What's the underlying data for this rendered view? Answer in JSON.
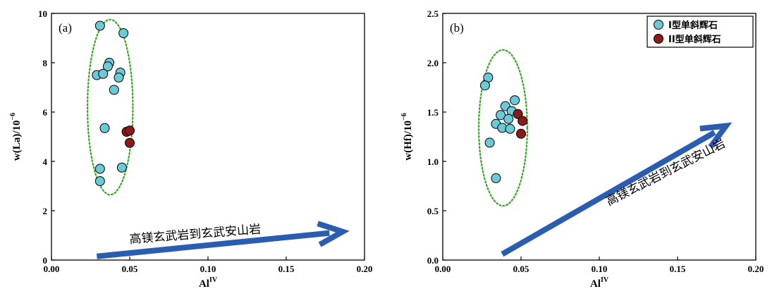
{
  "chart_data": [
    {
      "type": "scatter",
      "panel_label": "(a)",
      "xlabel": "Al",
      "xlabel_sup": "IV",
      "ylabel": "w(La)/10",
      "ylabel_sup": "−6",
      "xlim": [
        0,
        0.2
      ],
      "ylim": [
        0,
        10
      ],
      "xticks": [
        "0.00",
        "0.05",
        "0.10",
        "0.15",
        "0.20"
      ],
      "yticks": [
        "0",
        "2",
        "4",
        "6",
        "8",
        "10"
      ],
      "legend": null,
      "series": [
        {
          "name": "I型单斜辉石",
          "color": "#6cc9d6",
          "points": [
            [
              0.031,
              9.5
            ],
            [
              0.046,
              9.2
            ],
            [
              0.037,
              8.0
            ],
            [
              0.036,
              7.85
            ],
            [
              0.029,
              7.5
            ],
            [
              0.033,
              7.55
            ],
            [
              0.044,
              7.6
            ],
            [
              0.043,
              7.4
            ],
            [
              0.04,
              6.9
            ],
            [
              0.034,
              5.35
            ],
            [
              0.031,
              3.7
            ],
            [
              0.045,
              3.75
            ],
            [
              0.031,
              3.2
            ]
          ]
        },
        {
          "name": "II型单斜辉石",
          "color": "#8b1a1a",
          "points": [
            [
              0.048,
              5.2
            ],
            [
              0.05,
              5.25
            ],
            [
              0.05,
              4.75
            ]
          ]
        }
      ],
      "ellipse": {
        "cx": 0.0375,
        "cy": 6.2,
        "rx": 0.0145,
        "ry": 3.55,
        "color": "#33aa22"
      },
      "arrow": {
        "from": [
          0.029,
          0.15
        ],
        "to": [
          0.186,
          1.15
        ],
        "color": "#2a5db0"
      },
      "annotation": {
        "text": "高镁玄武岩到玄武安山岩",
        "x": 0.05,
        "y": 0.68,
        "rotate": -4.5
      }
    },
    {
      "type": "scatter",
      "panel_label": "(b)",
      "xlabel": "Al",
      "xlabel_sup": "IV",
      "ylabel": "w(Hf)/10",
      "ylabel_sup": "−6",
      "xlim": [
        0,
        0.2
      ],
      "ylim": [
        0,
        2.5
      ],
      "xticks": [
        "0.00",
        "0.05",
        "0.10",
        "0.15",
        "0.20"
      ],
      "yticks": [
        "0.0",
        "0.5",
        "1.0",
        "1.5",
        "2.0",
        "2.5"
      ],
      "legend": "top-right",
      "series": [
        {
          "name": "I型单斜辉石",
          "color": "#6cc9d6",
          "points": [
            [
              0.029,
              1.85
            ],
            [
              0.027,
              1.77
            ],
            [
              0.046,
              1.62
            ],
            [
              0.04,
              1.56
            ],
            [
              0.044,
              1.51
            ],
            [
              0.037,
              1.47
            ],
            [
              0.042,
              1.43
            ],
            [
              0.034,
              1.38
            ],
            [
              0.038,
              1.34
            ],
            [
              0.043,
              1.33
            ],
            [
              0.03,
              1.19
            ],
            [
              0.034,
              0.83
            ]
          ]
        },
        {
          "name": "II型单斜辉石",
          "color": "#8b1a1a",
          "points": [
            [
              0.048,
              1.48
            ],
            [
              0.051,
              1.41
            ],
            [
              0.05,
              1.28
            ]
          ]
        }
      ],
      "ellipse": {
        "cx": 0.0385,
        "cy": 1.34,
        "rx": 0.0155,
        "ry": 0.79,
        "color": "#33aa22"
      },
      "arrow": {
        "from": [
          0.038,
          0.06
        ],
        "to": [
          0.181,
          1.36
        ],
        "color": "#2a5db0"
      },
      "annotation": {
        "text": "高镁玄武岩到玄武安山岩",
        "x": 0.106,
        "y": 0.55,
        "rotate": -27
      }
    }
  ]
}
